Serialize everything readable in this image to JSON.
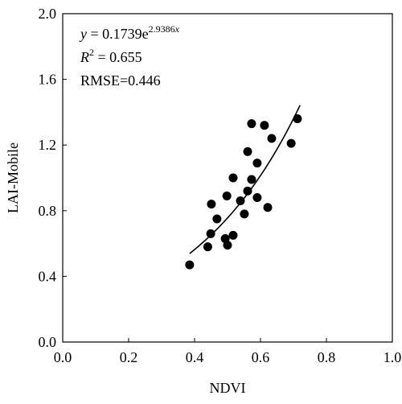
{
  "chart_data": {
    "type": "scatter",
    "xlabel": "NDVI",
    "ylabel": "LAI-Mobile",
    "x": [
      0.385,
      0.44,
      0.449,
      0.451,
      0.468,
      0.493,
      0.5,
      0.498,
      0.517,
      0.517,
      0.539,
      0.551,
      0.561,
      0.561,
      0.573,
      0.573,
      0.59,
      0.59,
      0.612,
      0.622,
      0.634,
      0.693,
      0.712
    ],
    "values": [
      0.47,
      0.58,
      0.66,
      0.84,
      0.75,
      0.63,
      0.59,
      0.89,
      0.65,
      1.0,
      0.86,
      0.78,
      0.92,
      1.16,
      0.99,
      1.33,
      1.09,
      0.88,
      1.32,
      0.82,
      1.24,
      1.21,
      1.36
    ],
    "color": "#000000",
    "xlim": [
      0,
      1
    ],
    "ylim": [
      0,
      2
    ],
    "xticks": [
      {
        "value": 0,
        "label": "0.0"
      },
      {
        "value": 0.2,
        "label": "0.2"
      },
      {
        "value": 0.4,
        "label": "0.4"
      },
      {
        "value": 0.6,
        "label": "0.6"
      },
      {
        "value": 0.8,
        "label": "0.8"
      },
      {
        "value": 1,
        "label": "1.0"
      }
    ],
    "yticks": [
      {
        "value": 0,
        "label": "0.0"
      },
      {
        "value": 0.4,
        "label": "0.4"
      },
      {
        "value": 0.8,
        "label": "0.8"
      },
      {
        "value": 1.2,
        "label": "1.2"
      },
      {
        "value": 1.6,
        "label": "1.6"
      },
      {
        "value": 2,
        "label": "2.0"
      }
    ],
    "fit": {
      "lhs": "y",
      "eq": " = ",
      "a": 0.1739,
      "base": "e",
      "b": 2.9386,
      "var": "x",
      "xmin": 0.385,
      "xmax": 0.72
    },
    "r2": {
      "symbol": "R",
      "power": "2",
      "eq": " = ",
      "value": 0.655
    },
    "rmse": {
      "label": "RMSE=",
      "value": 0.446
    }
  }
}
